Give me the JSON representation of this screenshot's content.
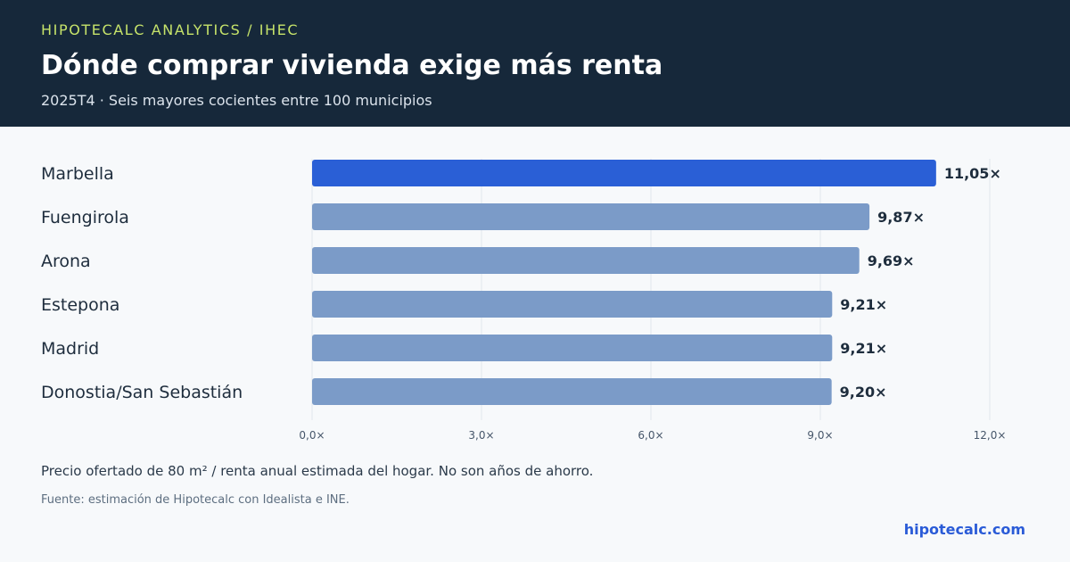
{
  "header": {
    "kicker": "HIPOTECALC ANALYTICS / IHEC",
    "title": "Dónde comprar vivienda exige más renta",
    "subtitle": "2025T4 · Seis mayores cocientes entre 100 municipios"
  },
  "chart_data": {
    "type": "bar",
    "orientation": "horizontal",
    "categories": [
      "Marbella",
      "Fuengirola",
      "Arona",
      "Estepona",
      "Madrid",
      "Donostia/San Sebastián"
    ],
    "values": [
      11.05,
      9.87,
      9.69,
      9.21,
      9.21,
      9.2
    ],
    "value_labels": [
      "11,05×",
      "9,87×",
      "9,69×",
      "9,21×",
      "9,21×",
      "9,20×"
    ],
    "xlim": [
      0,
      12
    ],
    "xticks": [
      0,
      3,
      6,
      9,
      12
    ],
    "xtick_labels": [
      "0,0×",
      "3,0×",
      "6,0×",
      "9,0×",
      "12,0×"
    ],
    "grid": true,
    "highlight_index": 0,
    "colors": {
      "highlight": "#2a5fd6",
      "bar": "#7b9bc8",
      "grid": "#e1e6ec",
      "label": "#1e2d3d",
      "tick": "#46566a"
    }
  },
  "footer": {
    "note": "Precio ofertado de 80 m² / renta anual estimada del hogar. No son años de ahorro.",
    "source": "Fuente: estimación de Hipotecalc con Idealista e INE.",
    "brand": "hipotecalc.com"
  }
}
